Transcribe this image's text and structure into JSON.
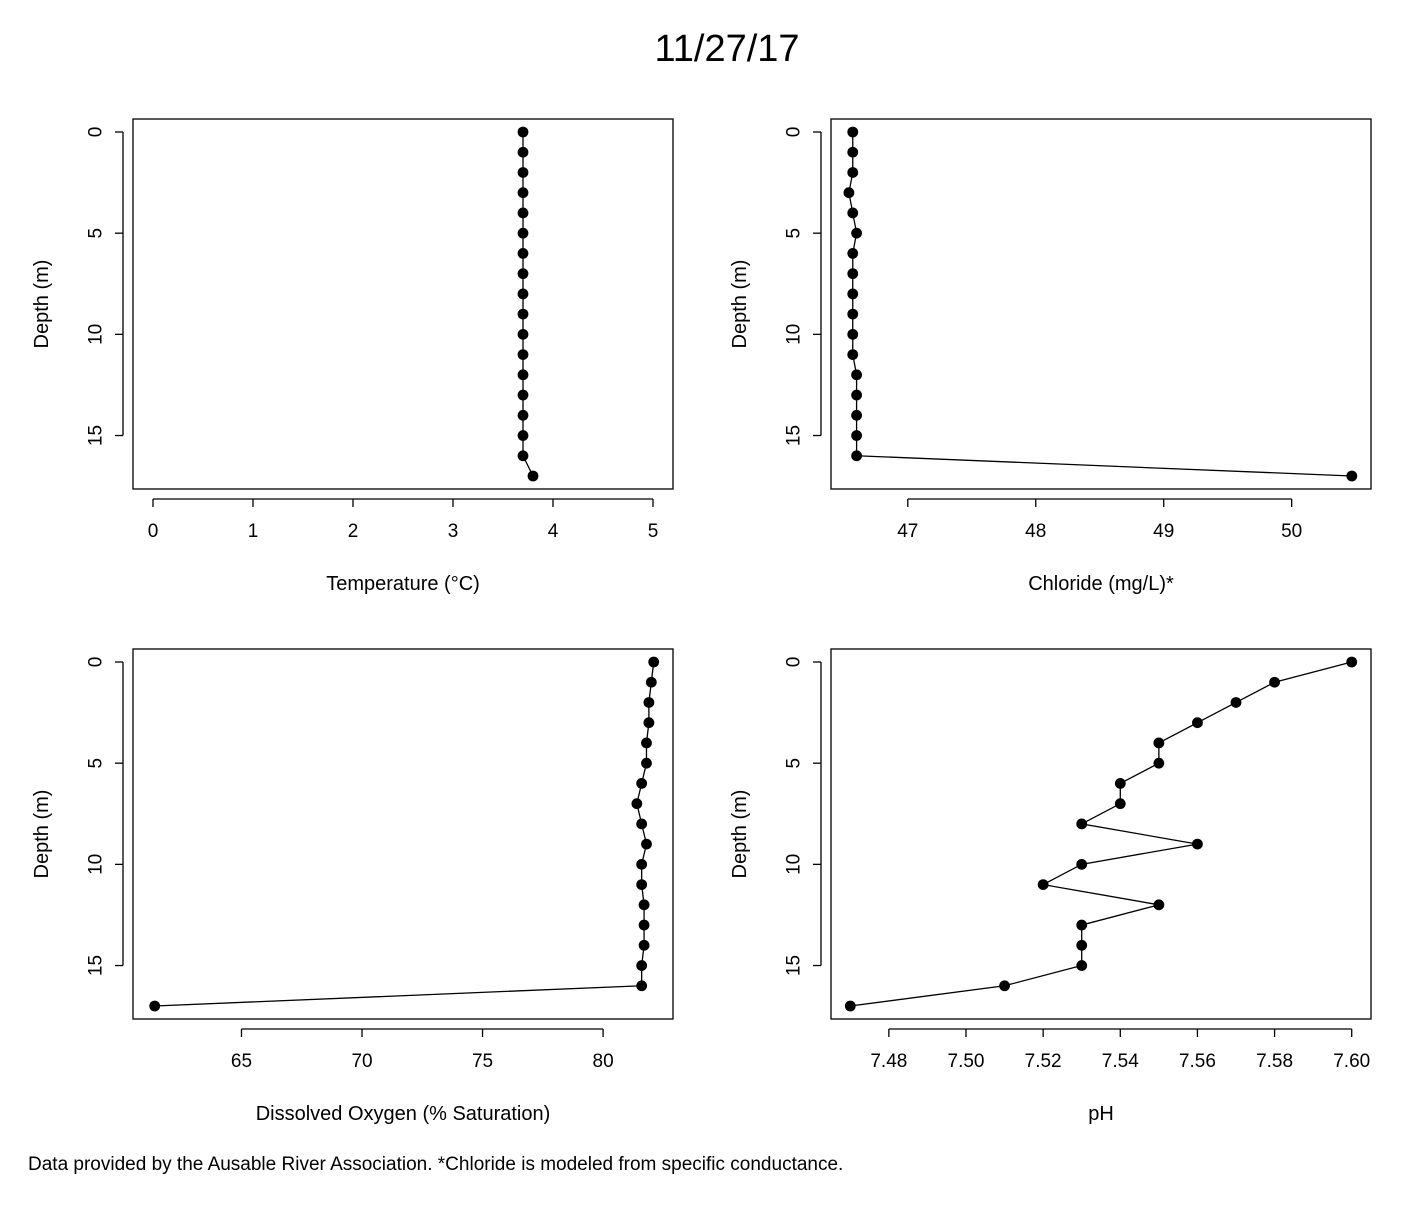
{
  "title": "11/27/17",
  "footnote": "Data provided by the Ausable River Association. *Chloride is modeled from specific conductance.",
  "chart_data": [
    {
      "type": "line",
      "xlabel": "Temperature (°C)",
      "ylabel": "Depth (m)",
      "xlim": [
        -0.2,
        5.2
      ],
      "ylim": [
        0,
        17
      ],
      "y_reversed": true,
      "xticks": [
        0,
        1,
        2,
        3,
        4,
        5
      ],
      "xtick_labels": [
        "0",
        "1",
        "2",
        "3",
        "4",
        "5"
      ],
      "yticks": [
        0,
        5,
        10,
        15
      ],
      "ytick_labels": [
        "0",
        "5",
        "10",
        "15"
      ],
      "depth": [
        0,
        1,
        2,
        3,
        4,
        5,
        6,
        7,
        8,
        9,
        10,
        11,
        12,
        13,
        14,
        15,
        16,
        17
      ],
      "values": [
        3.7,
        3.7,
        3.7,
        3.7,
        3.7,
        3.7,
        3.7,
        3.7,
        3.7,
        3.7,
        3.7,
        3.7,
        3.7,
        3.7,
        3.7,
        3.7,
        3.7,
        3.8
      ],
      "markers": true
    },
    {
      "type": "line",
      "xlabel": "Chloride (mg/L)*",
      "ylabel": "Depth (m)",
      "xlim": [
        46.4,
        50.62
      ],
      "ylim": [
        0,
        17
      ],
      "y_reversed": true,
      "xticks": [
        47,
        48,
        49,
        50
      ],
      "xtick_labels": [
        "47",
        "48",
        "49",
        "50"
      ],
      "yticks": [
        0,
        5,
        10,
        15
      ],
      "ytick_labels": [
        "0",
        "5",
        "10",
        "15"
      ],
      "depth": [
        0,
        1,
        2,
        3,
        4,
        5,
        6,
        7,
        8,
        9,
        10,
        11,
        12,
        13,
        14,
        15,
        16,
        17
      ],
      "values": [
        46.57,
        46.57,
        46.57,
        46.54,
        46.57,
        46.6,
        46.57,
        46.57,
        46.57,
        46.57,
        46.57,
        46.57,
        46.6,
        46.6,
        46.6,
        46.6,
        46.6,
        50.47
      ],
      "markers": true
    },
    {
      "type": "line",
      "xlabel": "Dissolved Oxygen (% Saturation)",
      "ylabel": "Depth (m)",
      "xlim": [
        60.5,
        82.9
      ],
      "ylim": [
        0,
        17
      ],
      "y_reversed": true,
      "xticks": [
        65,
        70,
        75,
        80
      ],
      "xtick_labels": [
        "65",
        "70",
        "75",
        "80"
      ],
      "yticks": [
        0,
        5,
        10,
        15
      ],
      "ytick_labels": [
        "0",
        "5",
        "10",
        "15"
      ],
      "depth": [
        0,
        1,
        2,
        3,
        4,
        5,
        6,
        7,
        8,
        9,
        10,
        11,
        12,
        13,
        14,
        15,
        16,
        17
      ],
      "values": [
        82.1,
        82.0,
        81.9,
        81.9,
        81.8,
        81.8,
        81.6,
        81.4,
        81.6,
        81.8,
        81.6,
        81.6,
        81.7,
        81.7,
        81.7,
        81.6,
        81.6,
        61.4
      ],
      "markers": true
    },
    {
      "type": "line",
      "xlabel": "pH",
      "ylabel": "Depth (m)",
      "xlim": [
        7.465,
        7.605
      ],
      "ylim": [
        0,
        17
      ],
      "y_reversed": true,
      "xticks": [
        7.48,
        7.5,
        7.52,
        7.54,
        7.56,
        7.58,
        7.6
      ],
      "xtick_labels": [
        "7.48",
        "7.50",
        "7.52",
        "7.54",
        "7.56",
        "7.58",
        "7.60"
      ],
      "yticks": [
        0,
        5,
        10,
        15
      ],
      "ytick_labels": [
        "0",
        "5",
        "10",
        "15"
      ],
      "depth": [
        0,
        1,
        2,
        3,
        4,
        5,
        6,
        7,
        8,
        9,
        10,
        11,
        12,
        13,
        14,
        15,
        16,
        17
      ],
      "values": [
        7.6,
        7.58,
        7.57,
        7.56,
        7.55,
        7.55,
        7.54,
        7.54,
        7.53,
        7.56,
        7.53,
        7.52,
        7.55,
        7.53,
        7.53,
        7.53,
        7.51,
        7.47
      ],
      "markers": true
    }
  ]
}
